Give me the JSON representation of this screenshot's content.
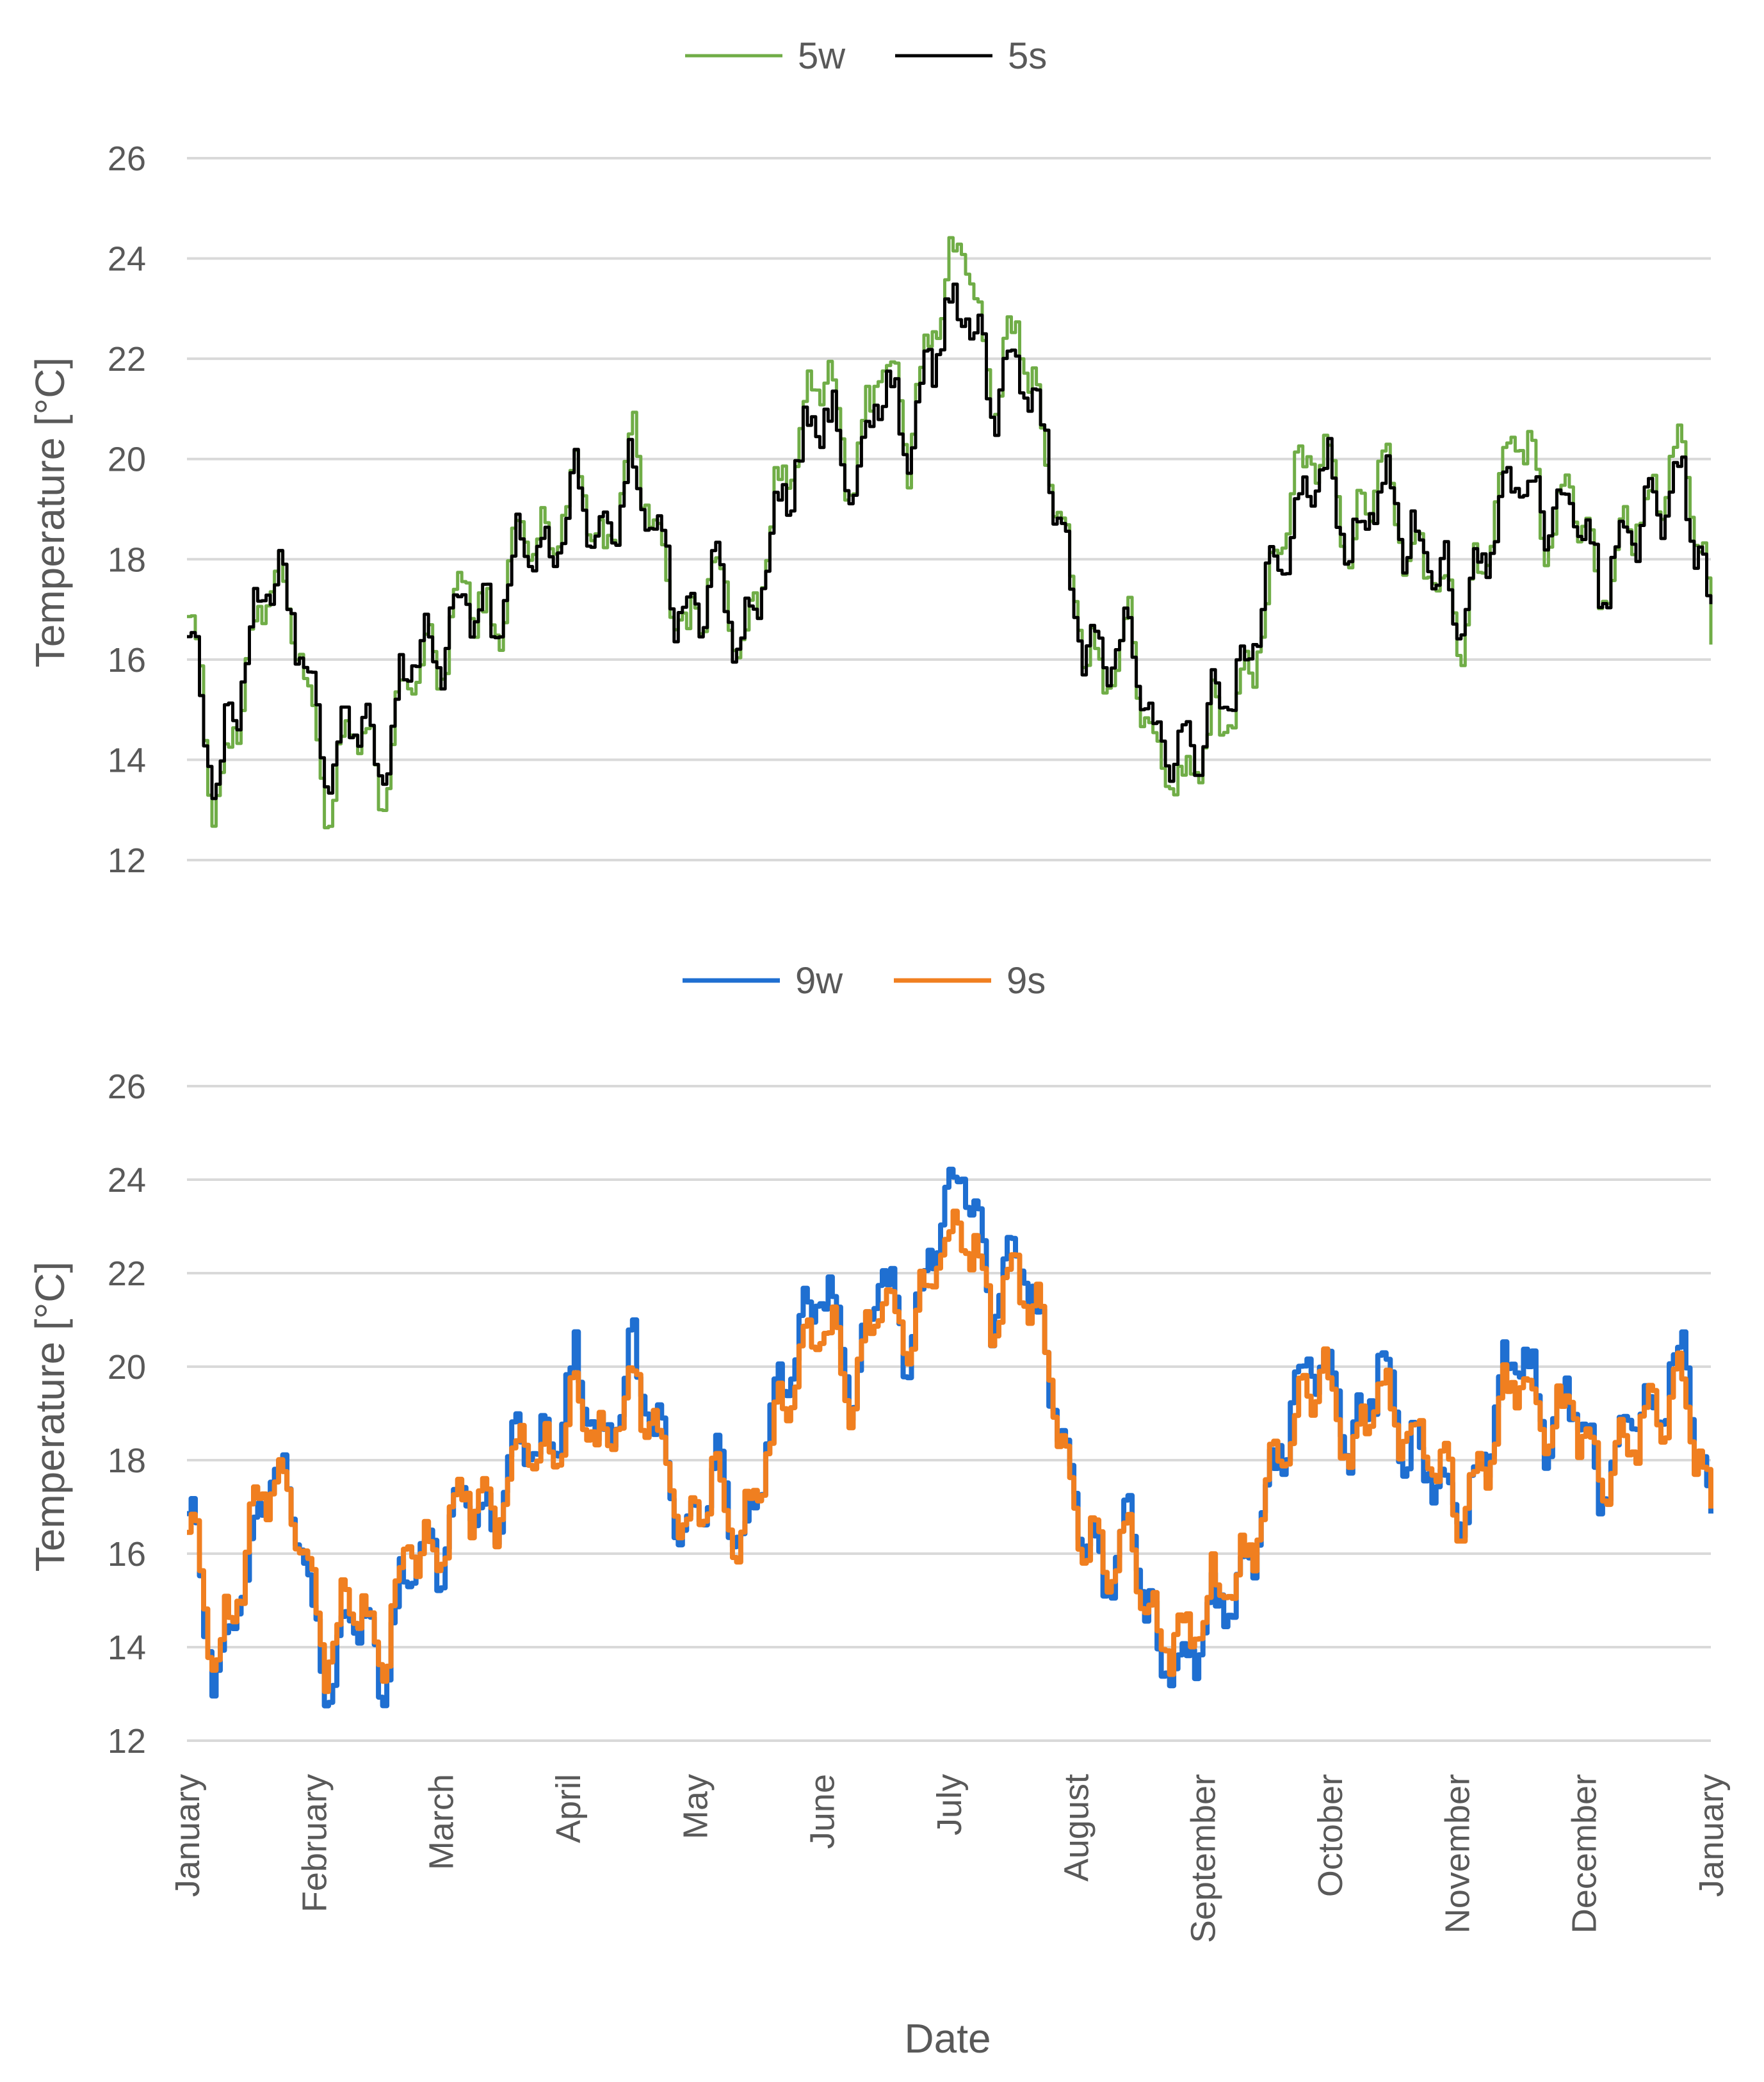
{
  "chart_data": [
    {
      "type": "line",
      "title": "",
      "xlabel": "",
      "ylabel": "Temperature [°C]",
      "ylim": [
        12,
        26
      ],
      "yticks": [
        "12",
        "14",
        "16",
        "18",
        "20",
        "22",
        "24",
        "26"
      ],
      "grid": true,
      "legend": "top-center",
      "x_unit": "date",
      "x": [
        "January",
        "January",
        "January",
        "January",
        "January",
        "February",
        "February",
        "February",
        "February",
        "March",
        "March",
        "March",
        "March",
        "March",
        "April",
        "April",
        "April",
        "April",
        "May",
        "May",
        "May",
        "May",
        "May",
        "June",
        "June",
        "June",
        "June",
        "June",
        "July",
        "July",
        "July",
        "July",
        "August",
        "August",
        "August",
        "August",
        "August",
        "September",
        "September",
        "September",
        "September",
        "October",
        "October",
        "October",
        "October",
        "October",
        "November",
        "November",
        "November",
        "November",
        "December",
        "December",
        "December",
        "December",
        "December",
        "January"
      ],
      "series": [
        {
          "name": "5w",
          "color": "#70ad47",
          "values": [
            17.2,
            13.0,
            15.4,
            18.0,
            16.4,
            13.0,
            14.8,
            13.2,
            16.0,
            15.8,
            17.6,
            16.4,
            18.6,
            18.2,
            19.8,
            18.0,
            20.4,
            18.4,
            16.2,
            18.0,
            16.0,
            18.6,
            20.6,
            21.8,
            19.2,
            22.4,
            20.2,
            23.0,
            24.5,
            21.0,
            22.8,
            20.0,
            17.2,
            15.4,
            16.6,
            13.8,
            13.4,
            14.8,
            15.2,
            17.2,
            19.6,
            20.4,
            18.0,
            20.2,
            18.2,
            17.8,
            16.6,
            18.6,
            20.8,
            18.4,
            19.4,
            17.2,
            18.8,
            19.2,
            20.4,
            16.4
          ]
        },
        {
          "name": "5s",
          "color": "#000000",
          "values": [
            16.8,
            13.4,
            15.8,
            17.8,
            16.6,
            13.6,
            15.0,
            13.6,
            16.2,
            16.0,
            17.4,
            16.6,
            18.4,
            18.0,
            19.4,
            18.2,
            19.8,
            18.4,
            16.4,
            17.8,
            16.2,
            18.4,
            20.0,
            21.0,
            19.4,
            21.6,
            20.4,
            22.4,
            23.2,
            21.2,
            22.2,
            20.2,
            16.8,
            15.8,
            16.4,
            14.2,
            14.0,
            15.0,
            15.6,
            17.4,
            19.0,
            19.8,
            18.2,
            19.6,
            18.4,
            18.0,
            16.8,
            18.4,
            20.0,
            18.6,
            19.2,
            17.4,
            18.6,
            19.0,
            19.6,
            16.6
          ]
        }
      ]
    },
    {
      "type": "line",
      "title": "",
      "xlabel": "Date",
      "ylabel": "Temperature [°C]",
      "ylim": [
        12,
        26
      ],
      "yticks": [
        "12",
        "14",
        "16",
        "18",
        "20",
        "22",
        "24",
        "26"
      ],
      "grid": true,
      "legend": "top-center",
      "x_unit": "date",
      "xticks": [
        "January",
        "February",
        "March",
        "April",
        "May",
        "June",
        "July",
        "August",
        "September",
        "October",
        "November",
        "December",
        "January"
      ],
      "x": [
        "January",
        "January",
        "January",
        "January",
        "January",
        "February",
        "February",
        "February",
        "February",
        "March",
        "March",
        "March",
        "March",
        "March",
        "April",
        "April",
        "April",
        "April",
        "May",
        "May",
        "May",
        "May",
        "May",
        "June",
        "June",
        "June",
        "June",
        "June",
        "July",
        "July",
        "July",
        "July",
        "August",
        "August",
        "August",
        "August",
        "August",
        "September",
        "September",
        "September",
        "September",
        "October",
        "October",
        "October",
        "October",
        "October",
        "November",
        "November",
        "November",
        "November",
        "December",
        "December",
        "December",
        "December",
        "December",
        "January"
      ],
      "series": [
        {
          "name": "9w",
          "color": "#1f6fd1",
          "values": [
            17.2,
            13.2,
            15.4,
            18.0,
            16.4,
            13.0,
            14.8,
            13.2,
            16.0,
            15.8,
            17.6,
            16.4,
            18.6,
            18.2,
            20.0,
            18.0,
            20.4,
            18.4,
            16.2,
            18.0,
            16.0,
            18.6,
            20.6,
            21.8,
            19.2,
            22.4,
            20.2,
            23.0,
            24.4,
            21.0,
            22.8,
            20.0,
            17.2,
            15.4,
            16.6,
            13.8,
            13.4,
            14.8,
            15.2,
            17.2,
            19.6,
            20.4,
            18.0,
            20.2,
            18.2,
            17.8,
            16.6,
            18.6,
            20.8,
            18.4,
            19.4,
            17.2,
            18.8,
            19.2,
            20.4,
            16.4
          ]
        },
        {
          "name": "9s",
          "color": "#f07f20",
          "values": [
            16.8,
            13.6,
            15.8,
            17.8,
            16.6,
            13.8,
            15.2,
            13.6,
            16.2,
            16.0,
            17.4,
            16.6,
            18.4,
            18.0,
            19.4,
            18.2,
            19.8,
            18.4,
            16.4,
            17.8,
            16.2,
            18.4,
            20.0,
            21.0,
            19.4,
            21.6,
            20.4,
            22.4,
            23.0,
            21.2,
            22.2,
            20.2,
            16.8,
            15.8,
            16.4,
            14.2,
            14.2,
            15.2,
            15.6,
            17.4,
            19.0,
            19.8,
            18.2,
            19.6,
            18.4,
            18.0,
            16.8,
            18.4,
            20.0,
            18.6,
            19.2,
            17.4,
            18.6,
            19.0,
            19.6,
            16.6
          ]
        }
      ]
    }
  ]
}
